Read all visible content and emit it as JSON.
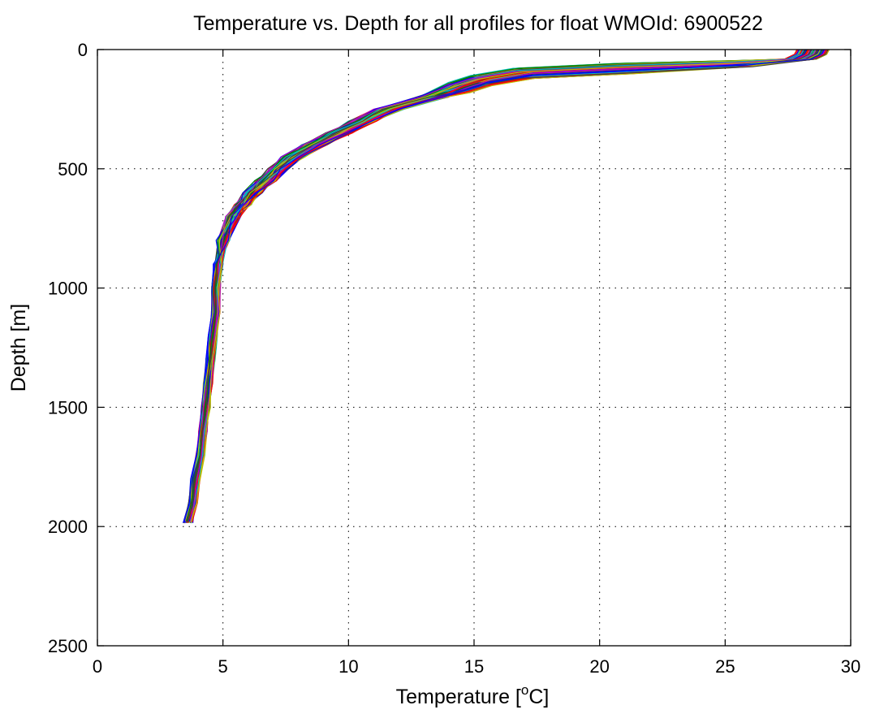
{
  "chart_data": {
    "type": "line",
    "title": "Temperature vs. Depth for all profiles for float WMOId: 6900522",
    "xlabel": {
      "prefix": "Temperature [",
      "superscript": "o",
      "suffix": "C]"
    },
    "ylabel": "Depth [m]",
    "xlim": [
      0,
      30
    ],
    "ylim": [
      0,
      2500
    ],
    "y_reversed": true,
    "grid": true,
    "x_ticks": [
      0,
      5,
      10,
      15,
      20,
      25,
      30
    ],
    "y_ticks": [
      0,
      500,
      1000,
      1500,
      2000,
      2500
    ],
    "series_colors": [
      "#0000ff",
      "#008000",
      "#ff0000",
      "#00bfbf",
      "#bf00bf",
      "#bfbf00",
      "#404040"
    ],
    "profile_count": 120,
    "representative_profile": {
      "depth": [
        0,
        20,
        40,
        60,
        80,
        100,
        130,
        160,
        200,
        250,
        300,
        350,
        400,
        450,
        500,
        550,
        600,
        650,
        700,
        800,
        900,
        1000,
        1100,
        1200,
        1300,
        1400,
        1500,
        1600,
        1700,
        1800,
        1900,
        1980
      ],
      "temperature": [
        28.5,
        28.4,
        28.0,
        25.5,
        21.0,
        17.0,
        15.3,
        14.4,
        13.3,
        11.6,
        10.6,
        9.6,
        8.6,
        7.8,
        7.2,
        6.7,
        6.2,
        5.8,
        5.4,
        5.0,
        4.8,
        4.7,
        4.7,
        4.6,
        4.5,
        4.4,
        4.3,
        4.2,
        4.1,
        3.9,
        3.8,
        3.6
      ]
    }
  }
}
